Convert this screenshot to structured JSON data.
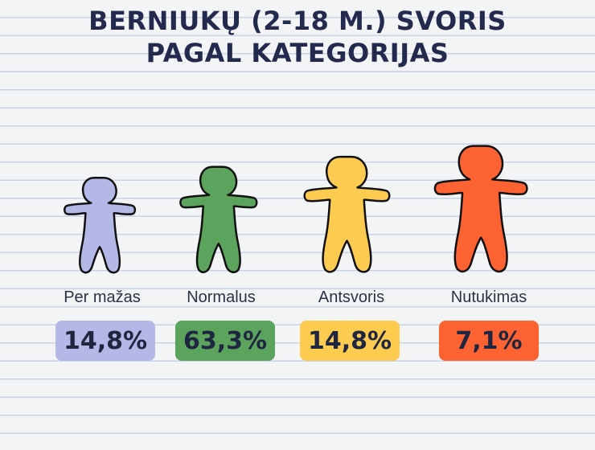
{
  "title": {
    "line1": "BERNIUKŲ (2-18 M.) SVORIS",
    "line2": "PAGAL KATEGORIJAS"
  },
  "categories": [
    {
      "label": "Per mažas",
      "value": "14,8%",
      "color": "#b3b8e6",
      "icon": "person-figure-icon"
    },
    {
      "label": "Normalus",
      "value": "63,3%",
      "color": "#5ca35e",
      "icon": "person-figure-icon"
    },
    {
      "label": "Antsvoris",
      "value": "14,8%",
      "color": "#fccb4f",
      "icon": "person-figure-icon"
    },
    {
      "label": "Nutukimas",
      "value": "7,1%",
      "color": "#fc6232",
      "icon": "person-figure-icon"
    }
  ]
}
